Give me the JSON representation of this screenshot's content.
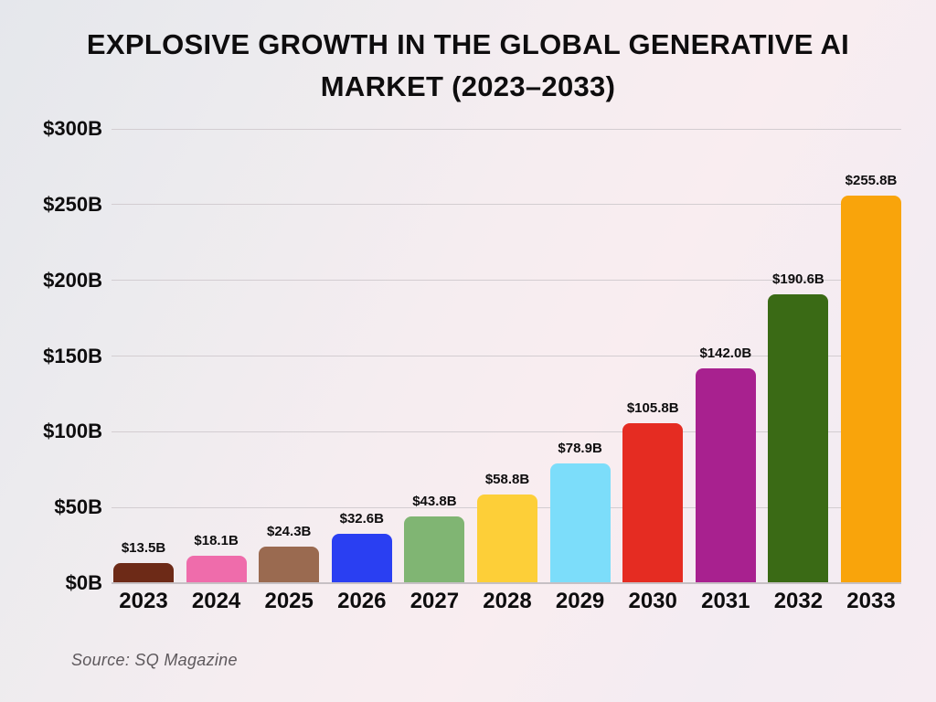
{
  "title": "EXPLOSIVE GROWTH IN THE GLOBAL GENERATIVE AI MARKET (2023–2033)",
  "source": "Source: SQ Magazine",
  "chart_data": {
    "type": "bar",
    "title": "EXPLOSIVE GROWTH IN THE GLOBAL GENERATIVE AI MARKET (2023–2033)",
    "xlabel": "",
    "ylabel": "",
    "categories": [
      "2023",
      "2024",
      "2025",
      "2026",
      "2027",
      "2028",
      "2029",
      "2030",
      "2031",
      "2032",
      "2033"
    ],
    "values": [
      13.5,
      18.1,
      24.3,
      32.6,
      43.8,
      58.8,
      78.9,
      105.8,
      142.0,
      190.6,
      255.8
    ],
    "value_labels": [
      "$13.5B",
      "$18.1B",
      "$24.3B",
      "$32.6B",
      "$43.8B",
      "$58.8B",
      "$78.9B",
      "$105.8B",
      "$142.0B",
      "$190.6B",
      "$255.8B"
    ],
    "bar_colors": [
      "#6d2a17",
      "#ef6cab",
      "#9a6a50",
      "#2a3ff2",
      "#80b573",
      "#fdcf38",
      "#7cddfa",
      "#e52c22",
      "#a8218f",
      "#3a6a15",
      "#f9a40b"
    ],
    "ytick_labels": [
      "$0B",
      "$50B",
      "$100B",
      "$150B",
      "$200B",
      "$250B",
      "$300B"
    ],
    "ytick_values": [
      0,
      50,
      100,
      150,
      200,
      250,
      300
    ],
    "ylim": [
      0,
      300
    ],
    "grid": true,
    "legend_position": "none",
    "source": "Source: SQ Magazine"
  },
  "colors": {
    "background_start": "#e5e7ec",
    "background_end": "#f9edf0",
    "title": "#0e0d0e",
    "gridline": "#d3cdd1",
    "axis_line": "#c6c0c4",
    "tick_label": "#0e0d0e",
    "value_label": "#0e0d0e",
    "source": "#5d585c"
  }
}
